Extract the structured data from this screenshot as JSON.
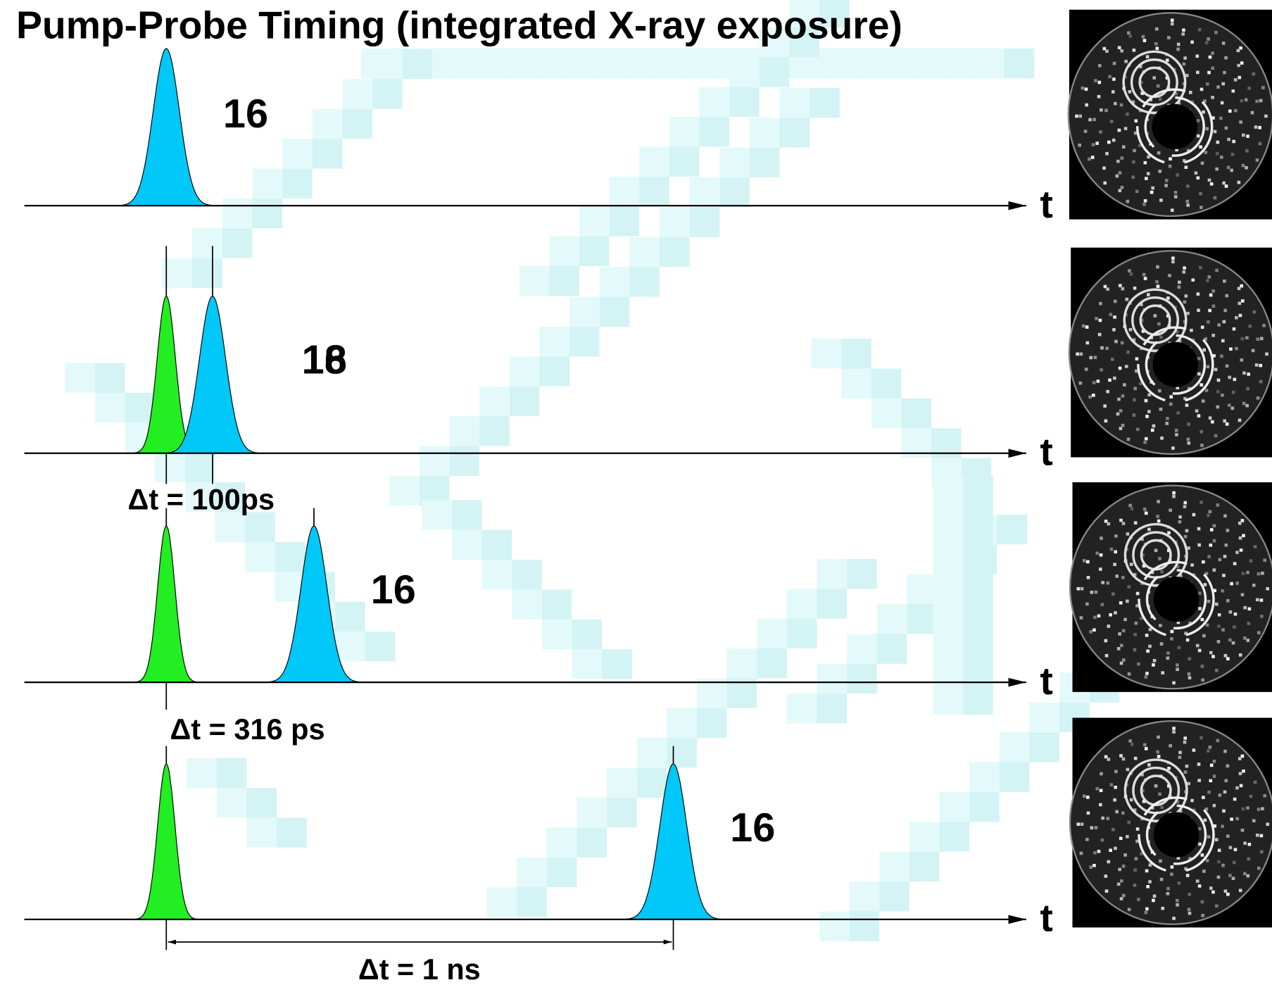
{
  "title": "Pump-Probe Timing (integrated X-ray exposure)",
  "rows": [
    {
      "counts": [
        "16"
      ],
      "axis": "t"
    },
    {
      "counts": [
        "16",
        "18"
      ],
      "axis": "t",
      "delay": "Δt = 100ps"
    },
    {
      "counts": [
        "16"
      ],
      "axis": "t",
      "delay": "Δt = 316 ps"
    },
    {
      "counts": [
        "16"
      ],
      "axis": "t",
      "delay": "Δt = 1 ns"
    }
  ]
}
